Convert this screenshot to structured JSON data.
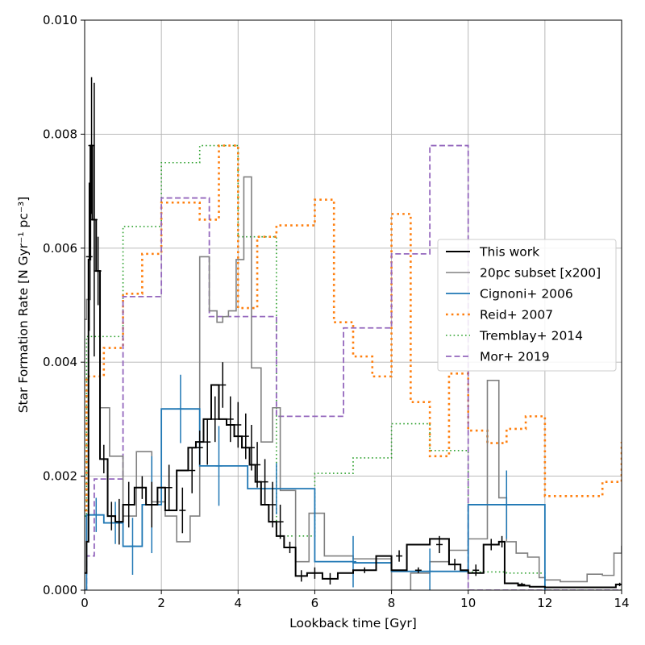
{
  "chart_data": {
    "type": "line",
    "xlabel": "Lookback time [Gyr]",
    "ylabel": "Star Formation Rate [N Gyr⁻¹ pc⁻³]",
    "xlim": [
      0,
      14
    ],
    "ylim": [
      0,
      0.01
    ],
    "x_ticks": [
      0,
      2,
      4,
      6,
      8,
      10,
      12,
      14
    ],
    "x_tick_labels": [
      "0",
      "2",
      "4",
      "6",
      "8",
      "10",
      "12",
      "14"
    ],
    "y_ticks": [
      0,
      0.002,
      0.004,
      0.006,
      0.008,
      0.01
    ],
    "y_tick_labels": [
      "0.000",
      "0.002",
      "0.004",
      "0.006",
      "0.008",
      "0.010"
    ],
    "grid": true,
    "legend_position": "center-right",
    "series": [
      {
        "name": "Tremblay+ 2014",
        "color": "#2ca02c",
        "style": "dotted",
        "width": 1.6,
        "edges": [
          0,
          0.05,
          1.0,
          2.0,
          3.0,
          4.0,
          5.0,
          6.0,
          7.0,
          8.0,
          9.0,
          10.0,
          11.0,
          12.0,
          14.0
        ],
        "values": [
          0.0013,
          0.00445,
          0.00638,
          0.0075,
          0.0078,
          0.0062,
          0.00095,
          0.00205,
          0.00232,
          0.00292,
          0.00245,
          0.00032,
          0.0003,
          0.0
        ]
      },
      {
        "name": "Reid+ 2007",
        "color": "#ff7f0e",
        "style": "dotted-thick",
        "width": 2.6,
        "edges": [
          0,
          0.05,
          0.5,
          1.0,
          1.5,
          2.0,
          2.5,
          3.0,
          3.5,
          4.0,
          4.5,
          5.0,
          5.5,
          6.0,
          6.5,
          7.0,
          7.5,
          8.0,
          8.5,
          9.0,
          9.5,
          10.0,
          10.5,
          11.0,
          11.5,
          12.0,
          12.5,
          13.0,
          13.5,
          14.0
        ],
        "values": [
          0.0014,
          0.00375,
          0.00425,
          0.0052,
          0.0059,
          0.0068,
          0.0068,
          0.0065,
          0.0078,
          0.00495,
          0.0062,
          0.0064,
          0.0064,
          0.00685,
          0.0047,
          0.0041,
          0.00375,
          0.0066,
          0.0033,
          0.00235,
          0.0038,
          0.0028,
          0.00258,
          0.00283,
          0.00305,
          0.00165,
          0.00165,
          0.00165,
          0.0019,
          0.0026
        ]
      },
      {
        "name": "Mor+ 2019",
        "color": "#9467bd",
        "style": "dashed",
        "width": 1.8,
        "edges": [
          0,
          0.05,
          0.25,
          1.0,
          2.0,
          3.25,
          5.0,
          6.75,
          8.0,
          9.0,
          10.0,
          10.5,
          14.0
        ],
        "values": [
          0.0,
          0.0006,
          0.00195,
          0.00515,
          0.00688,
          0.0048,
          0.00305,
          0.0046,
          0.0059,
          0.0078,
          0.0,
          0.0,
          0.0
        ]
      },
      {
        "name": "20pc subset [x200]",
        "color": "#808080",
        "style": "solid",
        "width": 1.6,
        "edges": [
          0,
          0.05,
          0.15,
          0.25,
          0.4,
          0.65,
          1.0,
          1.35,
          1.75,
          2.1,
          2.4,
          2.75,
          3.0,
          3.25,
          3.45,
          3.6,
          3.75,
          3.95,
          4.15,
          4.35,
          4.6,
          4.9,
          5.1,
          5.5,
          5.85,
          6.25,
          7.0,
          8.0,
          8.5,
          9.0,
          9.5,
          10.0,
          10.5,
          10.8,
          11.0,
          11.25,
          11.55,
          11.85,
          12.0,
          12.4,
          12.8,
          13.1,
          13.5,
          13.8,
          14.0
        ],
        "values": [
          0.00475,
          0.0051,
          0.0078,
          0.0056,
          0.0032,
          0.00235,
          0.0013,
          0.00243,
          0.00155,
          0.0013,
          0.00085,
          0.0013,
          0.00585,
          0.0049,
          0.0047,
          0.0048,
          0.0049,
          0.0058,
          0.00725,
          0.0039,
          0.0026,
          0.0032,
          0.00175,
          0.0005,
          0.00135,
          0.0006,
          0.00055,
          0.0,
          0.0003,
          0.0005,
          0.0007,
          0.0009,
          0.00368,
          0.00162,
          0.00085,
          0.00065,
          0.00058,
          0.00022,
          0.00018,
          0.00015,
          0.00015,
          0.00028,
          0.00026,
          0.00065,
          0.00078
        ]
      },
      {
        "name": "Cignoni+ 2006",
        "color": "#1f77b4",
        "style": "solid",
        "width": 1.8,
        "edges": [
          0,
          0.05,
          0.5,
          1.0,
          1.5,
          2.0,
          3.0,
          4.25,
          6.0,
          7.0,
          8.0,
          9.0,
          10.0,
          12.0
        ],
        "values": [
          0.0,
          0.00132,
          0.00118,
          0.00077,
          0.0015,
          0.00318,
          0.00218,
          0.00178,
          0.0005,
          0.00048,
          0.00033,
          0.00033,
          0.0015,
          0.0
        ],
        "error_x": [
          0.3,
          0.8,
          1.25,
          1.75,
          2.5,
          3.5,
          5.0,
          7.0,
          9.0,
          11.0
        ],
        "error_y": [
          0.00132,
          0.00118,
          0.00077,
          0.0015,
          0.00318,
          0.00218,
          0.00178,
          0.0005,
          0.00033,
          0.0015
        ],
        "error_size": [
          0.0003,
          0.00037,
          0.0005,
          0.00085,
          0.0006,
          0.0007,
          0.00045,
          0.00045,
          0.0004,
          0.0006
        ]
      },
      {
        "name": "This work",
        "color": "#000000",
        "style": "solid",
        "width": 2.0,
        "edges": [
          0,
          0.05,
          0.1,
          0.15,
          0.2,
          0.3,
          0.4,
          0.6,
          0.8,
          1.0,
          1.3,
          1.6,
          1.9,
          2.1,
          2.4,
          2.7,
          2.9,
          3.1,
          3.3,
          3.5,
          3.7,
          3.9,
          4.1,
          4.3,
          4.45,
          4.6,
          4.8,
          5.0,
          5.2,
          5.5,
          5.8,
          6.2,
          6.6,
          7.0,
          7.6,
          8.0,
          8.4,
          9.0,
          9.5,
          9.8,
          10.0,
          10.4,
          10.8,
          10.95,
          11.3,
          11.6,
          12.0,
          12.5,
          13.0,
          13.5,
          13.85,
          14.0
        ],
        "values": [
          0.0003,
          0.00085,
          0.0058,
          0.0078,
          0.0065,
          0.0056,
          0.0023,
          0.0013,
          0.0012,
          0.0015,
          0.0018,
          0.0015,
          0.0018,
          0.0014,
          0.0021,
          0.0025,
          0.0026,
          0.003,
          0.0036,
          0.003,
          0.0029,
          0.0027,
          0.0025,
          0.0022,
          0.0019,
          0.0015,
          0.0012,
          0.00095,
          0.00075,
          0.00025,
          0.0003,
          0.0002,
          0.0003,
          0.00035,
          0.0006,
          0.00035,
          0.0008,
          0.0009,
          0.00045,
          0.00035,
          0.0003,
          0.0008,
          0.00085,
          0.00012,
          8e-05,
          6e-05,
          5e-05,
          5e-05,
          5e-05,
          5e-05,
          0.0001
        ],
        "error_x": [
          0.12,
          0.18,
          0.25,
          0.35,
          0.5,
          0.7,
          0.9,
          1.15,
          1.5,
          1.75,
          2.2,
          2.55,
          2.8,
          3.0,
          3.2,
          3.4,
          3.6,
          3.8,
          4.0,
          4.2,
          4.35,
          4.5,
          4.7,
          4.9,
          5.1,
          5.35,
          5.65,
          6.0,
          6.4,
          7.3,
          8.2,
          8.7,
          9.25,
          9.65,
          10.2,
          10.6,
          10.88,
          11.4,
          13.95
        ],
        "error_y": [
          0.00585,
          0.0078,
          0.0065,
          0.0056,
          0.0023,
          0.0013,
          0.0012,
          0.0015,
          0.0018,
          0.0015,
          0.0018,
          0.0014,
          0.0021,
          0.0025,
          0.0026,
          0.003,
          0.0036,
          0.003,
          0.0029,
          0.0027,
          0.0025,
          0.0022,
          0.0019,
          0.0015,
          0.0012,
          0.00075,
          0.00025,
          0.0003,
          0.0002,
          0.00035,
          0.0006,
          0.00035,
          0.0008,
          0.00045,
          0.00035,
          0.0008,
          0.00085,
          0.0001,
          0.0001
        ],
        "error_size": [
          0.0013,
          0.0012,
          0.0024,
          0.0006,
          0.00025,
          0.00025,
          0.0004,
          0.0004,
          0.0002,
          0.0004,
          0.0004,
          0.0004,
          0.0004,
          0.0003,
          0.0004,
          0.0004,
          0.0004,
          0.0004,
          0.0004,
          0.0004,
          0.0004,
          0.0004,
          0.0004,
          0.0004,
          0.0003,
          0.0001,
          0.0001,
          0.0001,
          0.0001,
          5e-05,
          0.0001,
          5e-05,
          0.00015,
          0.0001,
          0.0001,
          0.0001,
          0.0001,
          3e-05,
          3e-05
        ]
      }
    ],
    "legend_order": [
      "This work",
      "20pc subset [x200]",
      "Cignoni+ 2006",
      "Reid+ 2007",
      "Tremblay+ 2014",
      "Mor+ 2019"
    ]
  }
}
